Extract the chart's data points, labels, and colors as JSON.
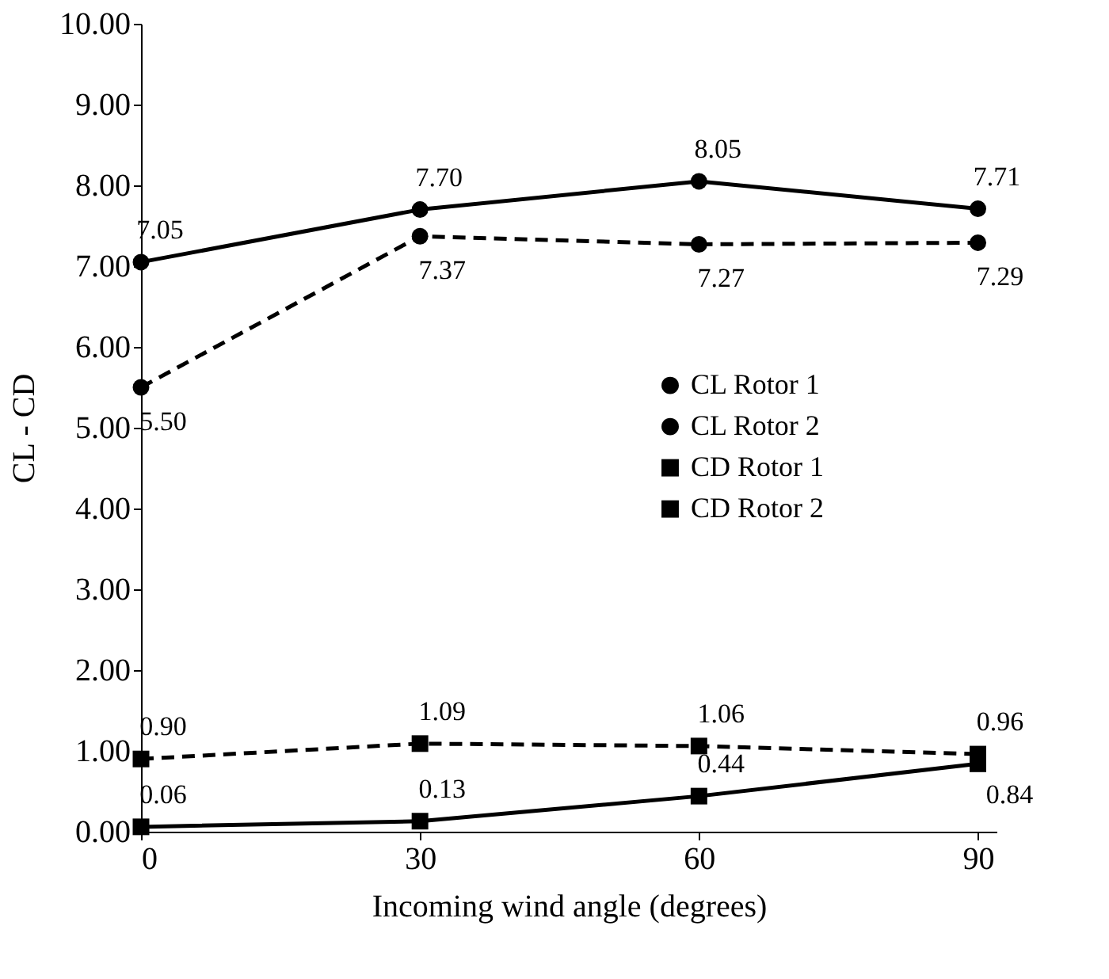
{
  "chart_data": {
    "type": "line",
    "xlabel": "Incoming wind angle (degrees)",
    "ylabel": "CL - CD",
    "x": [
      0,
      30,
      60,
      90
    ],
    "series": [
      {
        "name": "CL Rotor 1",
        "color": "#000000",
        "marker": "circle",
        "line_style": "solid",
        "values": [
          7.05,
          7.7,
          8.05,
          7.71
        ],
        "value_labels": [
          "7.05",
          "7.70",
          "8.05",
          "7.71"
        ]
      },
      {
        "name": "CL Rotor 2",
        "color": "#000000",
        "marker": "circle",
        "line_style": "dashed",
        "values": [
          5.5,
          7.37,
          7.27,
          7.29
        ],
        "value_labels": [
          "5.50",
          "7.37",
          "7.27",
          "7.29"
        ]
      },
      {
        "name": "CD Rotor 1",
        "color": "#000000",
        "marker": "square",
        "line_style": "solid",
        "values": [
          0.06,
          0.13,
          0.44,
          0.84
        ],
        "value_labels": [
          "0.06",
          "0.13",
          "0.44",
          "0.84"
        ]
      },
      {
        "name": "CD Rotor 2",
        "color": "#000000",
        "marker": "square",
        "line_style": "dashed",
        "values": [
          0.9,
          1.09,
          1.06,
          0.96
        ],
        "value_labels": [
          "0.90",
          "1.09",
          "1.06",
          "0.96"
        ]
      }
    ],
    "xlim": [
      0,
      92
    ],
    "xticks": [
      0,
      30,
      60,
      90
    ],
    "ylim": [
      0,
      10
    ],
    "yticks": [
      {
        "value": 0,
        "label": "0.00"
      },
      {
        "value": 1,
        "label": "1.00"
      },
      {
        "value": 2,
        "label": "2.00"
      },
      {
        "value": 3,
        "label": "3.00"
      },
      {
        "value": 4,
        "label": "4.00"
      },
      {
        "value": 5,
        "label": "5.00"
      },
      {
        "value": 6,
        "label": "6.00"
      },
      {
        "value": 7,
        "label": "7.00"
      },
      {
        "value": 8,
        "label": "8.00"
      },
      {
        "value": 9,
        "label": "9.00"
      },
      {
        "value": 10,
        "label": "10.00"
      }
    ],
    "grid": false,
    "legend": "right"
  }
}
